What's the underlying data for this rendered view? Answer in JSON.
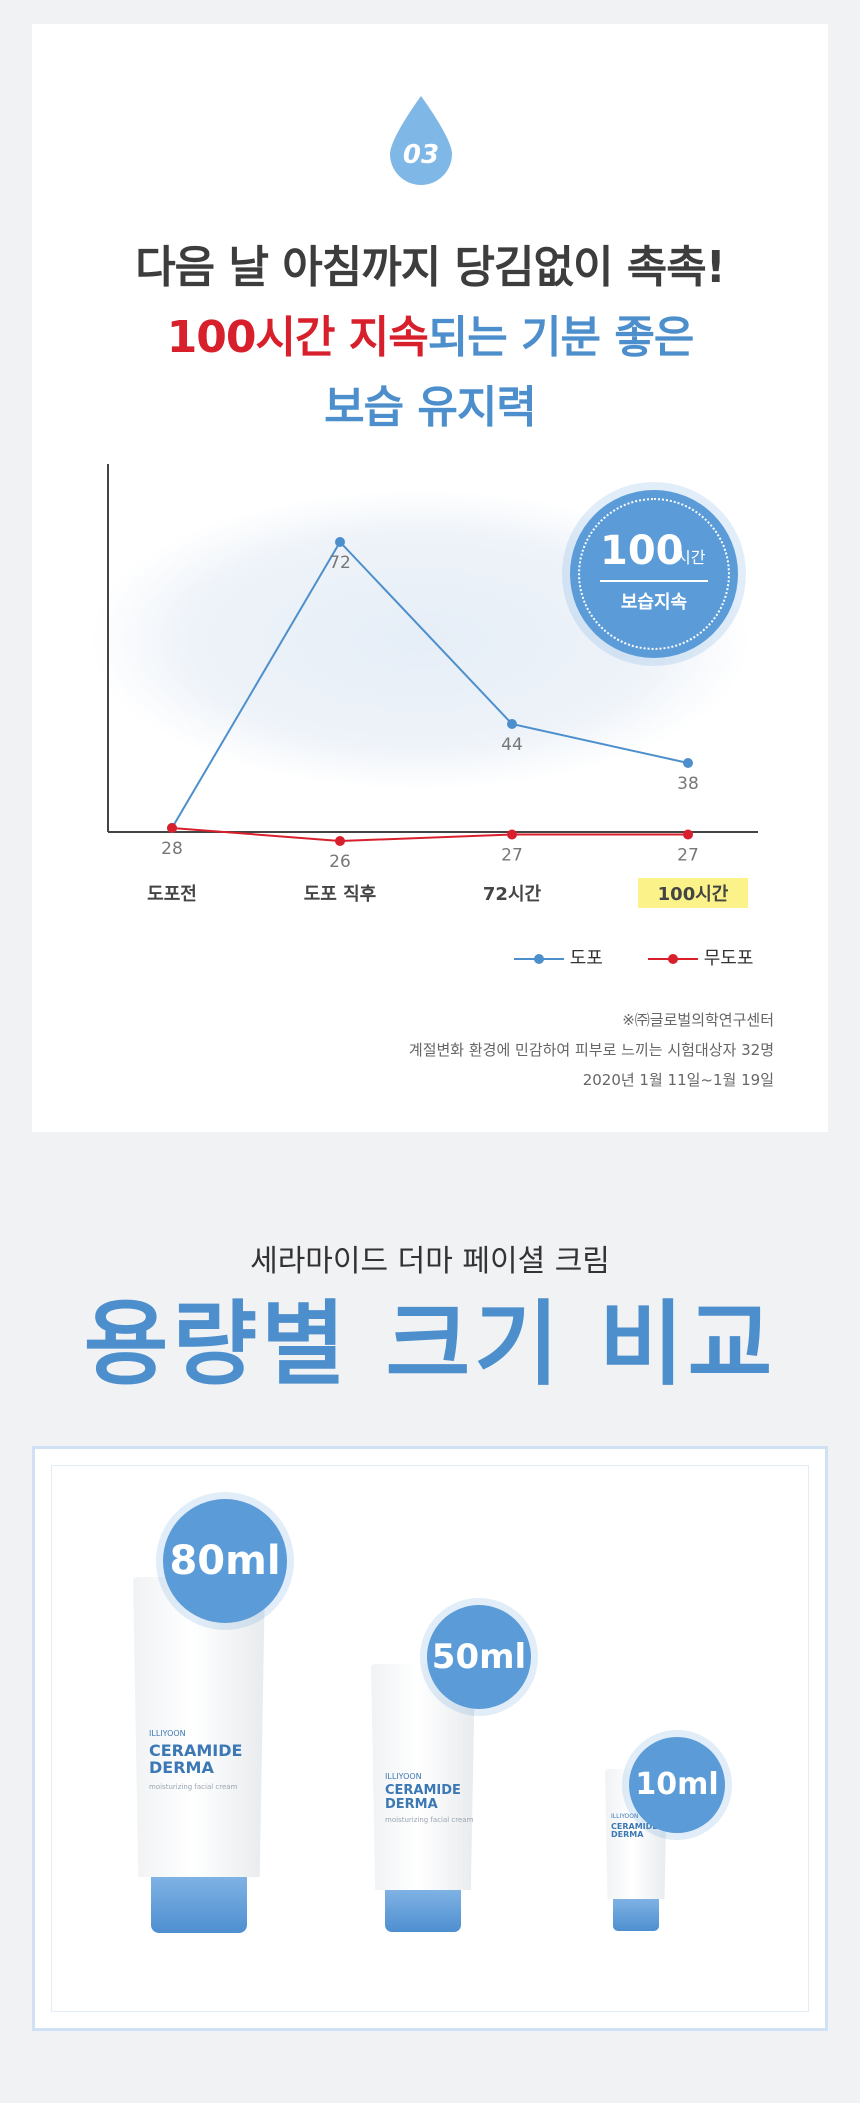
{
  "step_number": "03",
  "headline": {
    "line1": "다음 날 아침까지 당김없이 촉촉!",
    "line2_red": "100시간 지속",
    "line2_blue": "되는 기분 좋은",
    "line3": "보습 유지력"
  },
  "badge": {
    "value": "100",
    "unit": "시간",
    "label": "보습지속"
  },
  "chart_data": {
    "type": "line",
    "categories": [
      "도포전",
      "도포 직후",
      "72시간",
      "100시간"
    ],
    "series": [
      {
        "name": "도포",
        "values": [
          28,
          72,
          44,
          38
        ],
        "color": "#4d8fcc"
      },
      {
        "name": "무도포",
        "values": [
          28,
          26,
          27,
          27
        ],
        "color": "#d8202c"
      }
    ],
    "data_labels": {
      "도포": [
        "",
        "72",
        "44",
        "38"
      ],
      "무도포": [
        "28",
        "26",
        "27",
        "27"
      ]
    },
    "highlight_category": "100시간",
    "highlight_color": "#fbf28a",
    "ylim": [
      0,
      100
    ],
    "legend_position": "bottom-right",
    "grid": false
  },
  "notes": [
    "※㈜글로벌의학연구센터",
    "계절변화 환경에 민감하여 피부로 느끼는 시험대상자 32명",
    "2020년 1월 11일~1월 19일"
  ],
  "size_section": {
    "subtitle": "세라마이드 더마 페이셜 크림",
    "title": "용량별 크기 비교",
    "products": [
      {
        "volume": "80ml",
        "brand": "ILLIYOON",
        "name_line1": "CERAMIDE",
        "name_line2": "DERMA",
        "desc": "moisturizing facial cream"
      },
      {
        "volume": "50ml",
        "brand": "ILLIYOON",
        "name_line1": "CERAMIDE",
        "name_line2": "DERMA",
        "desc": "moisturizing facial cream"
      },
      {
        "volume": "10ml",
        "brand": "ILLIYOON",
        "name_line1": "CERAMIDE",
        "name_line2": "DERMA",
        "desc": "moisturizing facial cream"
      }
    ]
  },
  "colors": {
    "accent_blue": "#4d8fcc",
    "accent_red": "#d8202c",
    "badge_blue": "#5a9bd8"
  }
}
